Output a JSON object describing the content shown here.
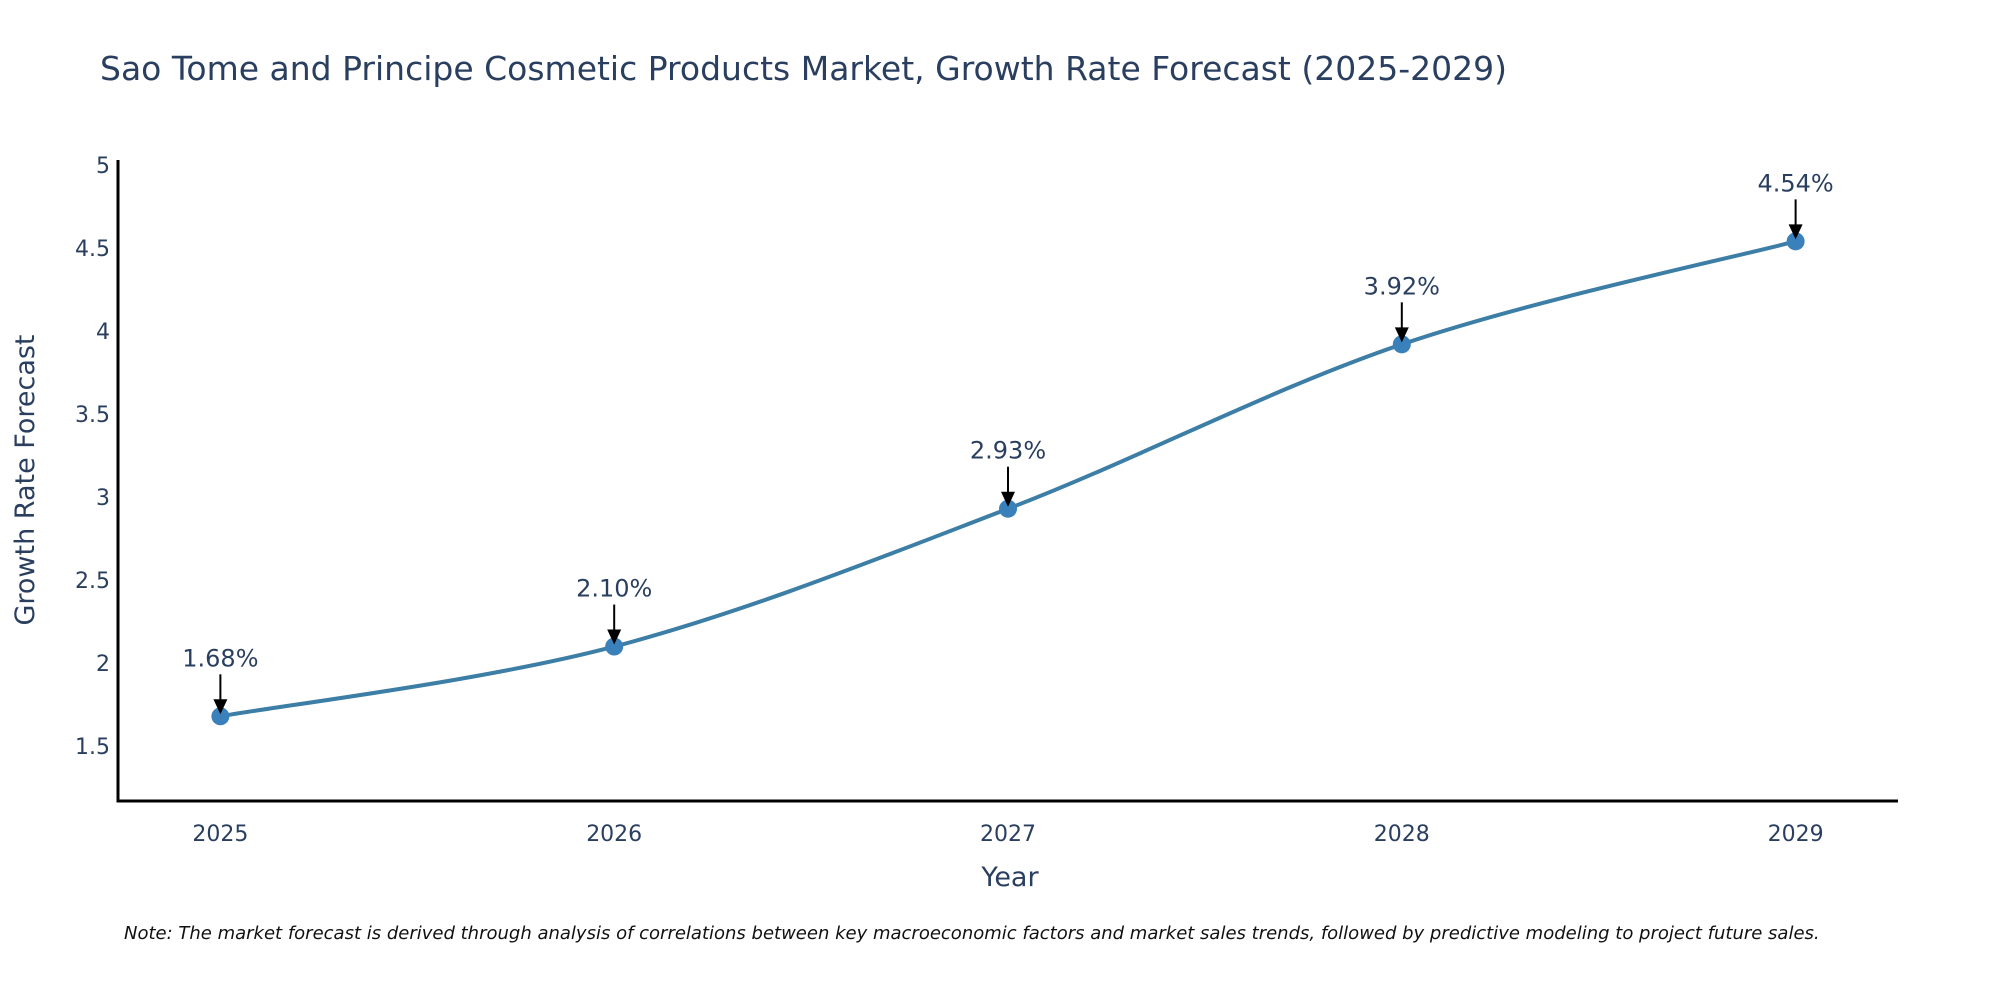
{
  "chart_data": {
    "type": "line",
    "title": "Sao Tome and Principe Cosmetic Products Market, Growth Rate Forecast (2025-2029)",
    "xlabel": "Year",
    "ylabel": "Growth Rate Forecast",
    "categories": [
      "2025",
      "2026",
      "2027",
      "2028",
      "2029"
    ],
    "series": [
      {
        "name": "Growth Rate Forecast",
        "values": [
          1.68,
          2.1,
          2.93,
          3.92,
          4.54
        ],
        "color": "#3d7ea6",
        "marker_color": "#3a80ba",
        "line_shape": "spline"
      }
    ],
    "annotations": [
      "1.68%",
      "2.10%",
      "2.93%",
      "3.92%",
      "4.54%"
    ],
    "annotation_arrow_color": "#000000",
    "yticks": [
      1.5,
      2,
      2.5,
      3,
      3.5,
      4,
      4.5,
      5
    ],
    "ytick_labels": [
      "1.5",
      "2",
      "2.5",
      "3",
      "3.5",
      "4",
      "4.5",
      "5"
    ],
    "ylim": [
      1.17,
      5.03
    ],
    "xlim": [
      2024.74,
      2029.26
    ],
    "grid": false,
    "legend": "none",
    "note": "Note: The market forecast is derived through analysis of correlations between key macroeconomic factors and market sales trends, followed by predictive modeling to project future sales."
  }
}
